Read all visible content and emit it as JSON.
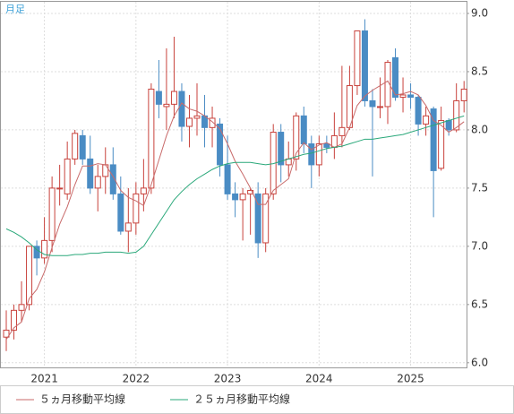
{
  "chart_data": {
    "type": "candlestick",
    "title": "月足",
    "categories": [
      null,
      null,
      null,
      null,
      null,
      "2021",
      null,
      null,
      null,
      null,
      null,
      null,
      null,
      null,
      null,
      null,
      null,
      "2022",
      null,
      null,
      null,
      null,
      null,
      null,
      null,
      null,
      null,
      null,
      null,
      "2023",
      null,
      null,
      null,
      null,
      null,
      null,
      null,
      null,
      null,
      null,
      null,
      "2024",
      null,
      null,
      null,
      null,
      null,
      null,
      null,
      null,
      null,
      null,
      null,
      "2025",
      null,
      null,
      null,
      null,
      null,
      null,
      null
    ],
    "open": [
      6.22,
      6.28,
      6.45,
      6.5,
      7.0,
      6.9,
      7.05,
      7.5,
      7.45,
      7.75,
      7.95,
      7.75,
      7.5,
      7.6,
      7.7,
      7.45,
      7.13,
      7.2,
      7.45,
      7.5,
      8.33,
      8.2,
      8.22,
      8.33,
      8.03,
      8.1,
      8.12,
      8.02,
      8.05,
      7.7,
      7.45,
      7.4,
      7.45,
      7.45,
      7.03,
      7.45,
      7.98,
      7.7,
      7.75,
      8.12,
      7.88,
      7.7,
      7.88,
      7.85,
      7.95,
      8.02,
      8.38,
      8.85,
      8.25,
      8.2,
      8.2,
      8.62,
      8.28,
      8.3,
      8.28,
      8.05,
      8.18,
      7.67,
      8.08,
      8.0,
      8.25
    ],
    "high": [
      6.45,
      6.5,
      6.7,
      7.0,
      7.05,
      7.25,
      7.6,
      7.7,
      7.9,
      8.0,
      8.0,
      7.95,
      7.7,
      7.85,
      7.85,
      7.6,
      7.5,
      7.55,
      7.75,
      8.4,
      8.6,
      8.7,
      8.8,
      8.4,
      8.3,
      8.4,
      8.3,
      8.2,
      8.1,
      7.95,
      7.55,
      7.5,
      7.5,
      7.55,
      7.5,
      8.05,
      8.05,
      7.9,
      8.15,
      8.2,
      7.95,
      7.95,
      7.95,
      8.15,
      8.55,
      8.55,
      8.85,
      8.95,
      8.35,
      8.45,
      8.6,
      8.7,
      8.45,
      8.4,
      8.3,
      8.2,
      8.2,
      8.2,
      8.1,
      8.4,
      8.42
    ],
    "low": [
      6.1,
      6.2,
      6.35,
      6.45,
      6.75,
      6.85,
      6.95,
      7.35,
      7.4,
      7.7,
      7.7,
      7.45,
      7.3,
      7.45,
      7.4,
      7.1,
      6.95,
      7.1,
      7.3,
      7.45,
      8.1,
      8.0,
      8.1,
      7.9,
      7.85,
      7.95,
      7.85,
      7.85,
      7.6,
      7.4,
      7.25,
      7.05,
      7.1,
      6.9,
      6.95,
      7.4,
      7.55,
      7.6,
      7.65,
      7.8,
      7.5,
      7.6,
      7.8,
      7.75,
      7.85,
      8.0,
      8.3,
      8.2,
      7.6,
      8.1,
      8.05,
      8.25,
      8.15,
      8.18,
      7.95,
      7.95,
      7.25,
      7.65,
      7.95,
      7.98,
      8.15
    ],
    "close": [
      6.28,
      6.45,
      6.5,
      7.0,
      6.9,
      7.05,
      7.5,
      7.5,
      7.75,
      7.97,
      7.75,
      7.5,
      7.6,
      7.7,
      7.45,
      7.13,
      7.2,
      7.45,
      7.5,
      8.35,
      8.22,
      8.22,
      8.33,
      8.03,
      8.1,
      8.12,
      8.02,
      8.1,
      7.7,
      7.45,
      7.4,
      7.45,
      7.48,
      7.03,
      7.45,
      7.98,
      7.7,
      7.75,
      8.12,
      7.88,
      7.7,
      7.88,
      7.85,
      7.95,
      8.02,
      8.38,
      8.85,
      8.25,
      8.2,
      8.2,
      8.58,
      8.28,
      8.3,
      8.28,
      8.05,
      8.12,
      7.65,
      8.08,
      8.0,
      8.25,
      8.35
    ],
    "up_color": "#c8423c",
    "down_color": "#4a8cc4",
    "lines": [
      {
        "name": "５ヵ月移動平均線",
        "color": "#c86a6a",
        "values": [
          6.2,
          6.3,
          6.35,
          6.55,
          6.63,
          6.78,
          6.99,
          7.19,
          7.34,
          7.53,
          7.69,
          7.69,
          7.71,
          7.7,
          7.6,
          7.48,
          7.42,
          7.39,
          7.35,
          7.53,
          7.74,
          7.95,
          8.12,
          8.23,
          8.18,
          8.16,
          8.12,
          8.07,
          8.01,
          7.88,
          7.73,
          7.62,
          7.5,
          7.36,
          7.36,
          7.48,
          7.53,
          7.58,
          7.8,
          7.89,
          7.83,
          7.87,
          7.89,
          7.85,
          7.88,
          8.02,
          8.21,
          8.29,
          8.34,
          8.38,
          8.42,
          8.3,
          8.31,
          8.33,
          8.3,
          8.21,
          8.08,
          8.04,
          7.98,
          8.02,
          8.07
        ]
      },
      {
        "name": "２５ヵ月移動平均線",
        "color": "#2aa87a",
        "values": [
          7.15,
          7.12,
          7.08,
          7.03,
          6.97,
          6.93,
          6.92,
          6.92,
          6.92,
          6.93,
          6.93,
          6.94,
          6.94,
          6.95,
          6.95,
          6.95,
          6.94,
          6.95,
          7.0,
          7.1,
          7.2,
          7.3,
          7.4,
          7.47,
          7.53,
          7.58,
          7.62,
          7.66,
          7.69,
          7.71,
          7.72,
          7.72,
          7.72,
          7.71,
          7.7,
          7.71,
          7.73,
          7.75,
          7.77,
          7.79,
          7.8,
          7.82,
          7.84,
          7.85,
          7.86,
          7.88,
          7.9,
          7.92,
          7.92,
          7.93,
          7.94,
          7.95,
          7.96,
          7.98,
          8.0,
          8.02,
          8.04,
          8.06,
          8.08,
          8.1,
          8.12
        ]
      }
    ],
    "ylim": [
      5.96,
      9.1
    ],
    "yticks": [
      {
        "value": 6,
        "label": "6.0"
      },
      6.5,
      {
        "value": 7,
        "label": "7.0"
      },
      7.5,
      {
        "value": 8,
        "label": "8.0"
      },
      8.5,
      {
        "value": 9,
        "label": "9.0"
      }
    ],
    "grid": true
  }
}
